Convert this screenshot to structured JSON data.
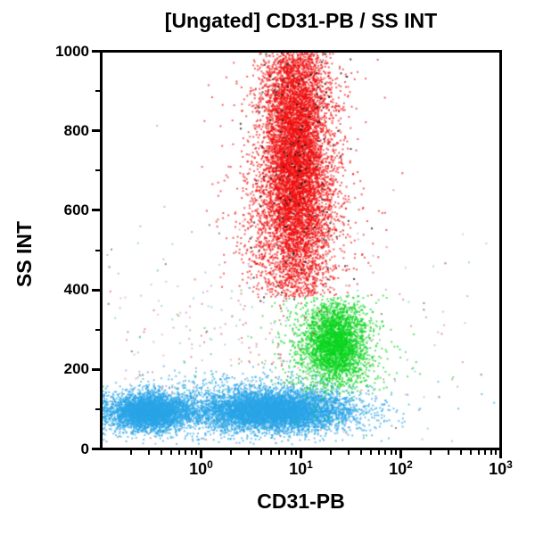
{
  "title": "[Ungated] CD31-PB / SS INT",
  "chart_data": {
    "type": "scatter",
    "subtype": "flow-cytometry-dot-plot",
    "title": "[Ungated] CD31-PB / SS INT",
    "xlabel": "CD31-PB",
    "ylabel": "SS INT",
    "grid": false,
    "legend": false,
    "x_axis": {
      "scale": "log",
      "min": 0.1,
      "max": 1000,
      "log10_range": [
        -1,
        3
      ],
      "major_ticks": [
        1,
        10,
        100,
        1000
      ],
      "tick_labels": [
        {
          "base": "10",
          "exp": "0"
        },
        {
          "base": "10",
          "exp": "1"
        },
        {
          "base": "10",
          "exp": "2"
        },
        {
          "base": "10",
          "exp": "3"
        }
      ]
    },
    "y_axis": {
      "scale": "linear",
      "min": 0,
      "max": 1000,
      "major_step": 200,
      "minor_step": 100,
      "tick_labels": [
        "0",
        "200",
        "400",
        "600",
        "800",
        "1000"
      ]
    },
    "render": {
      "seed": 1337,
      "dot_size": 2,
      "dot_alpha": 0.65
    },
    "populations": [
      {
        "name": "debris-outlier-scatter",
        "color_palette": [
          "#cc4466",
          "#44bbaa",
          "#888888",
          "#222222",
          "#dd8899",
          "#66aadd",
          "#bb66cc",
          "#dd2222",
          "#22aa22"
        ],
        "n": 450,
        "alpha": 0.5,
        "components": [
          {
            "frac": 1.0,
            "mx": 0.6,
            "sx": 1.1,
            "my": 250,
            "sy": 160
          }
        ],
        "clip": {
          "ymin": 5,
          "ymin_keep": 0,
          "ymax": 1000
        }
      },
      {
        "name": "ss-low-blue-population",
        "note": "CD31-PB spread ~0.1 to ~50, SS INT peak ~90",
        "color": "#29a4e6",
        "x_peak_value": 2,
        "ss_peak": 90,
        "n": 11000,
        "components": [
          {
            "frac": 0.34,
            "mx": -0.52,
            "sx": 0.2,
            "my": 90,
            "sy": 23
          },
          {
            "frac": 0.5,
            "mx": 0.72,
            "sx": 0.37,
            "my": 92,
            "sy": 24
          },
          {
            "frac": 0.16,
            "mx": 0.45,
            "sx": 0.65,
            "my": 100,
            "sy": 40
          }
        ],
        "pile_left": true,
        "clip": {
          "ymin": 8,
          "ymin_keep": 0,
          "ymax": 235
        }
      },
      {
        "name": "ss-mid-green-population",
        "note": "CD31-PB peak ~22, SS INT peak ~260",
        "color": "#0ad41e",
        "x_peak_value": 22,
        "ss_peak": 262,
        "n": 3200,
        "components": [
          {
            "frac": 0.72,
            "mx": 1.35,
            "sx": 0.145,
            "my": 263,
            "sy": 48
          },
          {
            "frac": 0.28,
            "mx": 1.3,
            "sx": 0.27,
            "my": 255,
            "sy": 75
          }
        ],
        "clip": {
          "ymin": 135,
          "ymin_keep": 0.2,
          "ymax": 385
        }
      },
      {
        "name": "ss-high-red-population",
        "note": "CD31-PB peak ~9, SS INT ~385 to 1000",
        "color": "#ee1010",
        "x_peak_value": 9,
        "ss_peak": 740,
        "n": 9500,
        "components": [
          {
            "frac": 0.78,
            "mx": 0.95,
            "sx": 0.165,
            "my": 745,
            "sy": 180
          },
          {
            "frac": 0.16,
            "mx": 0.95,
            "sx": 0.3,
            "my": 560,
            "sy": 120
          },
          {
            "frac": 0.06,
            "mx": 0.95,
            "sx": 0.26,
            "my": 900,
            "sy": 90
          }
        ],
        "clip": {
          "ymin": 382,
          "ymin_keep": 0.05,
          "ymax": 1000
        }
      },
      {
        "name": "dark-specks-in-red",
        "color": "#151515",
        "n": 170,
        "alpha": 0.8,
        "components": [
          {
            "frac": 1.0,
            "mx": 0.96,
            "sx": 0.27,
            "my": 700,
            "sy": 195
          }
        ],
        "clip": {
          "ymin": 360,
          "ymin_keep": 0.1,
          "ymax": 1000
        }
      }
    ]
  }
}
